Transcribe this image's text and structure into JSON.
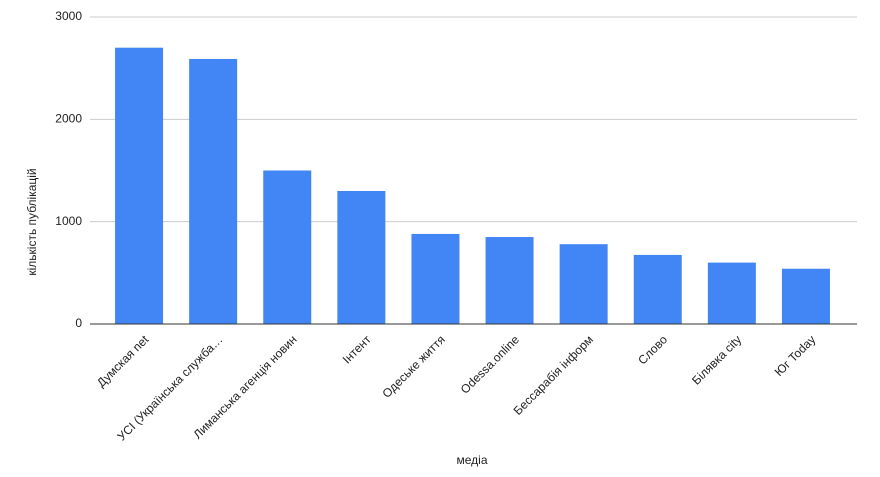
{
  "chart_data": {
    "type": "bar",
    "x_label": "медіа",
    "y_label": "кількість публікацій",
    "categories": [
      "Думская net",
      "УСІ (Українська служба…",
      "Лиманська агенція новин",
      "Інтент",
      "Одеське життя",
      "Odessa.online",
      "Бессарабія інформ",
      "Слово",
      "Білявка city",
      "Юг Today"
    ],
    "values": [
      2700,
      2590,
      1500,
      1300,
      880,
      850,
      780,
      675,
      600,
      540
    ],
    "color": "#4285f4",
    "ylim": [
      0,
      3000
    ],
    "yticks": [
      0,
      1000,
      2000,
      3000
    ],
    "grid": true
  }
}
